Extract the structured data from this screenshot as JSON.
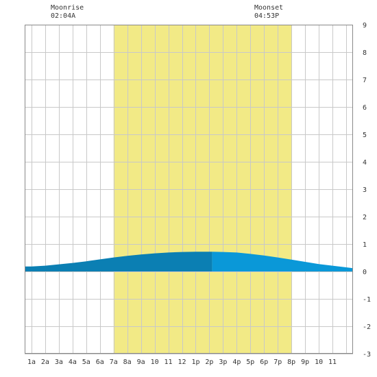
{
  "header": {
    "moonrise_label": "Moonrise",
    "moonrise_time": "02:04A",
    "moonset_label": "Moonset",
    "moonset_time": "04:53P"
  },
  "chart_data": {
    "type": "area",
    "title": "",
    "xlabel": "",
    "ylabel": "",
    "x_tick_labels": [
      "1a",
      "2a",
      "3a",
      "4a",
      "5a",
      "6a",
      "7a",
      "8a",
      "9a",
      "10",
      "11",
      "12",
      "1p",
      "2p",
      "3p",
      "4p",
      "5p",
      "6p",
      "7p",
      "8p",
      "9p",
      "10",
      "11"
    ],
    "x_tick_hours": [
      1,
      2,
      3,
      4,
      5,
      6,
      7,
      8,
      9,
      10,
      11,
      12,
      13,
      14,
      15,
      16,
      17,
      18,
      19,
      20,
      21,
      22,
      23
    ],
    "xlim": [
      0.5,
      24.5
    ],
    "ylim": [
      -3,
      9
    ],
    "y_ticks": [
      -3,
      -2,
      -1,
      0,
      1,
      2,
      3,
      4,
      5,
      6,
      7,
      8,
      9
    ],
    "grid": true,
    "daylight_hours": [
      7,
      20
    ],
    "moonrise_hour": 2.07,
    "moonset_hour": 16.88,
    "split_hour": 14.2,
    "series": [
      {
        "x": [
          0.5,
          1,
          2,
          3,
          4,
          5,
          6,
          7,
          8,
          9,
          10,
          11,
          12,
          13,
          14,
          14.2,
          15,
          16,
          17,
          18,
          19,
          20,
          21,
          22,
          23,
          24,
          24.5
        ],
        "values": [
          0.18,
          0.18,
          0.21,
          0.26,
          0.31,
          0.37,
          0.44,
          0.51,
          0.57,
          0.62,
          0.66,
          0.69,
          0.71,
          0.72,
          0.72,
          0.72,
          0.71,
          0.69,
          0.64,
          0.58,
          0.51,
          0.43,
          0.35,
          0.27,
          0.21,
          0.15,
          0.12
        ]
      }
    ],
    "colors": {
      "daylight": "#f2ea86",
      "grid": "#c8c8c8",
      "frame": "#888888",
      "tide_before": "#0b7fb3",
      "tide_after": "#0a98d8"
    }
  }
}
